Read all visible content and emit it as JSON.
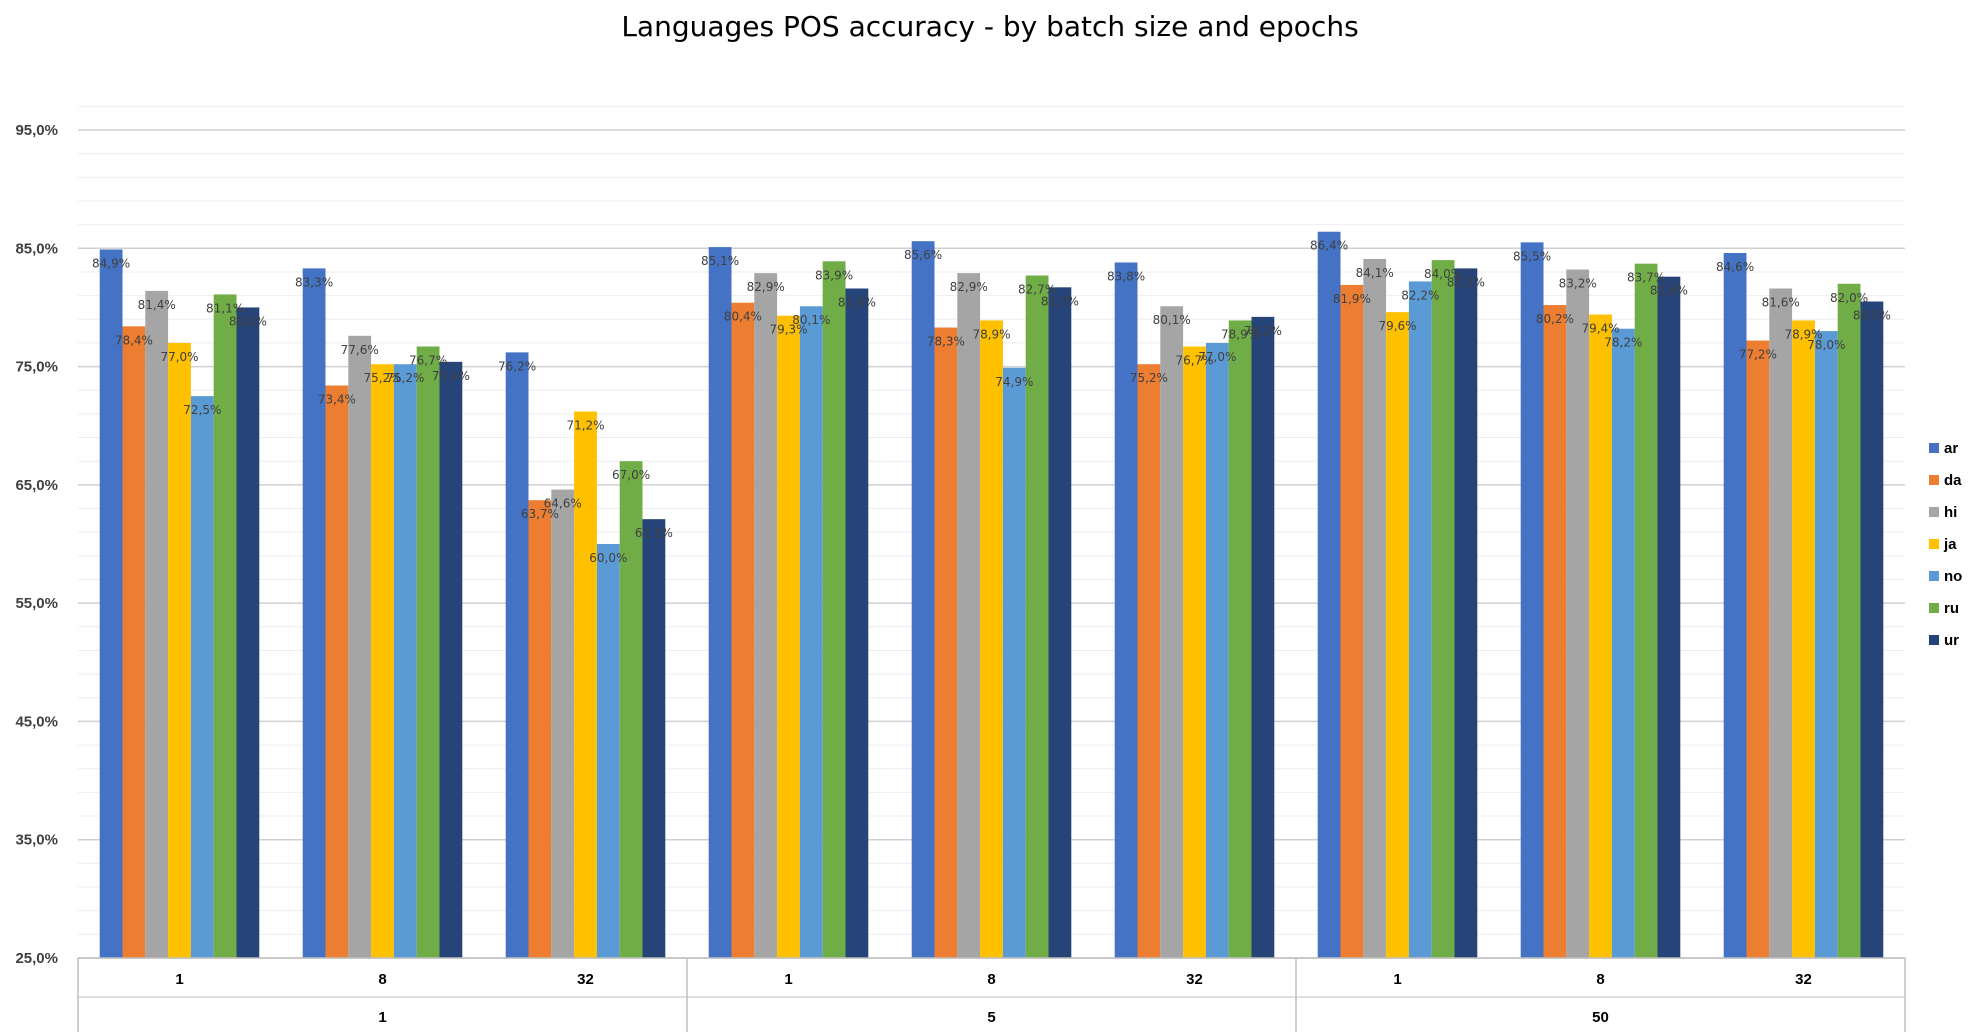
{
  "chart_data": {
    "type": "bar",
    "title": "Languages POS accuracy - by batch size and epochs",
    "xlabel": "",
    "ylabel": "",
    "ylim": [
      25,
      95
    ],
    "yticks": [
      "25,0%",
      "35,0%",
      "45,0%",
      "55,0%",
      "65,0%",
      "75,0%",
      "85,0%",
      "95,0%"
    ],
    "y_grid_major_step": 10,
    "y_grid_minor_step": 2,
    "groups": [
      {
        "label": "1",
        "categories": [
          "1",
          "8",
          "32"
        ]
      },
      {
        "label": "5",
        "categories": [
          "1",
          "8",
          "32"
        ]
      },
      {
        "label": "50",
        "categories": [
          "1",
          "8",
          "32"
        ]
      }
    ],
    "legend_position": "right",
    "series": [
      {
        "name": "ar",
        "color": "#4472C4",
        "values": [
          84.9,
          83.3,
          76.2,
          85.1,
          85.6,
          83.8,
          86.4,
          85.5,
          84.6
        ],
        "labels": [
          "84,9%",
          "83,3%",
          "76,2%",
          "85,1%",
          "85,6%",
          "83,8%",
          "86,4%",
          "85,5%",
          "84,6%"
        ]
      },
      {
        "name": "da",
        "color": "#ED7D31",
        "values": [
          78.4,
          73.4,
          63.7,
          80.4,
          78.3,
          75.2,
          81.9,
          80.2,
          77.2
        ],
        "labels": [
          "78,4%",
          "73,4%",
          "63,7%",
          "80,4%",
          "78,3%",
          "75,2%",
          "81,9%",
          "80,2%",
          "77,2%"
        ]
      },
      {
        "name": "hi",
        "color": "#A5A5A5",
        "values": [
          81.4,
          77.6,
          64.6,
          82.9,
          82.9,
          80.1,
          84.1,
          83.2,
          81.6
        ],
        "labels": [
          "81,4%",
          "77,6%",
          "64,6%",
          "82,9%",
          "82,9%",
          "80,1%",
          "84,1%",
          "83,2%",
          "81,6%"
        ]
      },
      {
        "name": "ja",
        "color": "#FFC000",
        "values": [
          77.0,
          75.2,
          71.2,
          79.3,
          78.9,
          76.7,
          79.6,
          79.4,
          78.9
        ],
        "labels": [
          "77,0%",
          "75,2%",
          "71,2%",
          "79,3%",
          "78,9%",
          "76,7%",
          "79,6%",
          "79,4%",
          "78,9%"
        ]
      },
      {
        "name": "no",
        "color": "#5B9BD5",
        "values": [
          72.5,
          75.2,
          60.0,
          80.1,
          74.9,
          77.0,
          82.2,
          78.2,
          78.0
        ],
        "labels": [
          "72,5%",
          "75,2%",
          "60,0%",
          "80,1%",
          "74,9%",
          "77,0%",
          "82,2%",
          "78,2%",
          "78,0%"
        ]
      },
      {
        "name": "ru",
        "color": "#70AD47",
        "values": [
          81.1,
          76.7,
          67.0,
          83.9,
          82.7,
          78.9,
          84.0,
          83.7,
          82.0
        ],
        "labels": [
          "81,1%",
          "76,7%",
          "67,0%",
          "83,9%",
          "82,7%",
          "78,9%",
          "84,0%",
          "83,7%",
          "82,0%"
        ]
      },
      {
        "name": "ur",
        "color": "#264478",
        "values": [
          80.0,
          75.4,
          62.1,
          81.6,
          81.7,
          79.2,
          83.3,
          82.6,
          80.5
        ],
        "labels": [
          "80,0%",
          "75,4%",
          "62,1%",
          "81,6%",
          "81,7%",
          "79,2%",
          "83,3%",
          "82,6%",
          "80,5%"
        ]
      }
    ]
  }
}
